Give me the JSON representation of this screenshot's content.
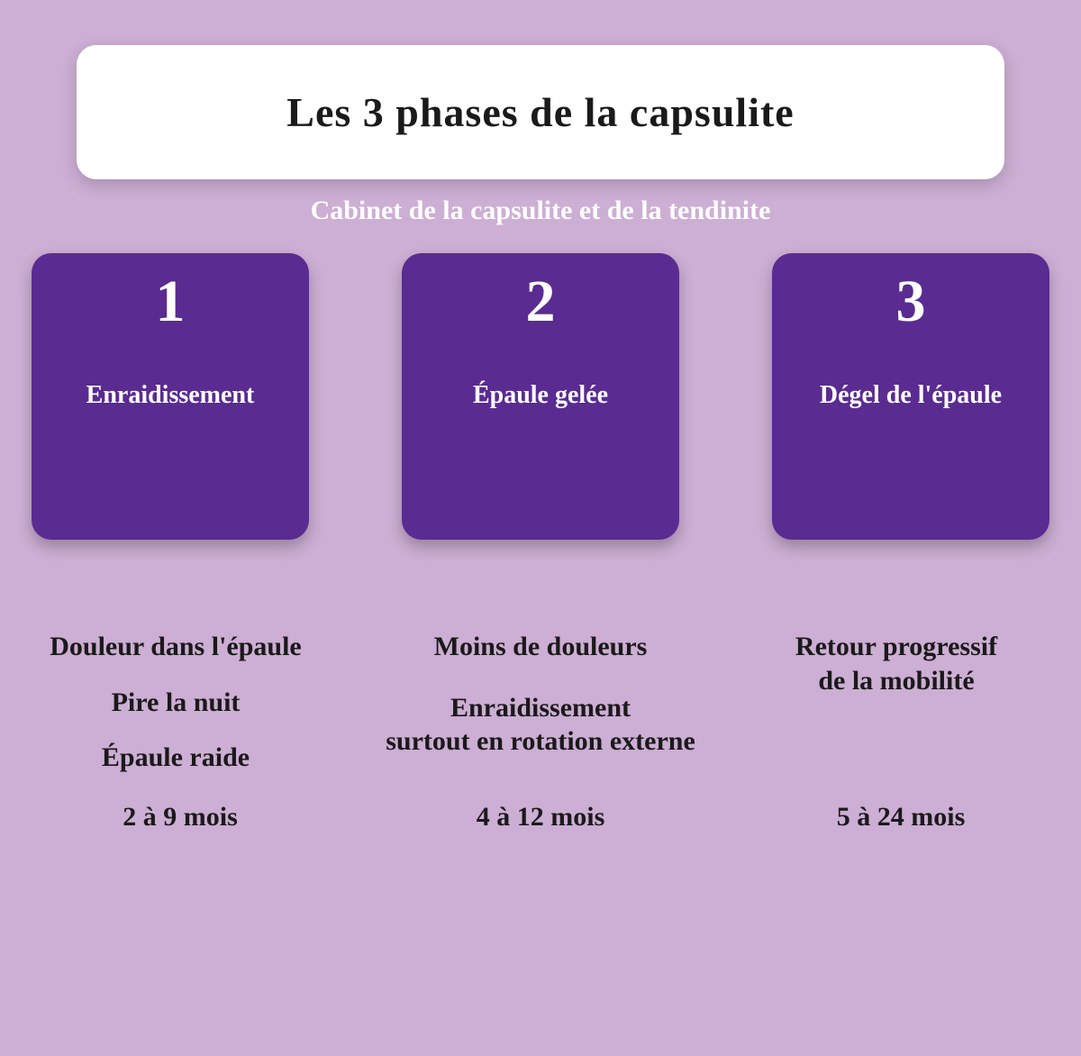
{
  "type": "infographic",
  "background_color": "#cdaed4",
  "title_panel": {
    "title": "Les 3 phases de la capsulite",
    "bg_color": "#ffffff",
    "text_color": "#1a1a1a",
    "border_radius": 22,
    "title_fontsize": 46
  },
  "subtitle": {
    "text": "Cabinet de la capsulite et de la tendinite",
    "color": "#ffffff",
    "fontsize": 30
  },
  "cards": {
    "bg_color": "#5a2b91",
    "text_color": "#ffffff",
    "border_radius": 22,
    "number_fontsize": 66,
    "label_fontsize": 28,
    "items": [
      {
        "number": "1",
        "label": "Enraidissement"
      },
      {
        "number": "2",
        "label": "Épaule gelée"
      },
      {
        "number": "3",
        "label": "Dégel de l'épaule"
      }
    ]
  },
  "details": {
    "text_color": "#1a1a1a",
    "fontsize": 30,
    "columns": [
      {
        "symptoms": [
          "Douleur dans l'épaule",
          "Pire la nuit",
          "Épaule raide"
        ],
        "duration": "2 à 9 mois"
      },
      {
        "symptoms": [
          "Moins de douleurs",
          "Enraidissement\nsurtout en rotation externe"
        ],
        "duration": "4 à 12 mois"
      },
      {
        "symptoms": [
          "Retour progressif\nde la mobilité"
        ],
        "duration": "5 à 24 mois"
      }
    ]
  }
}
